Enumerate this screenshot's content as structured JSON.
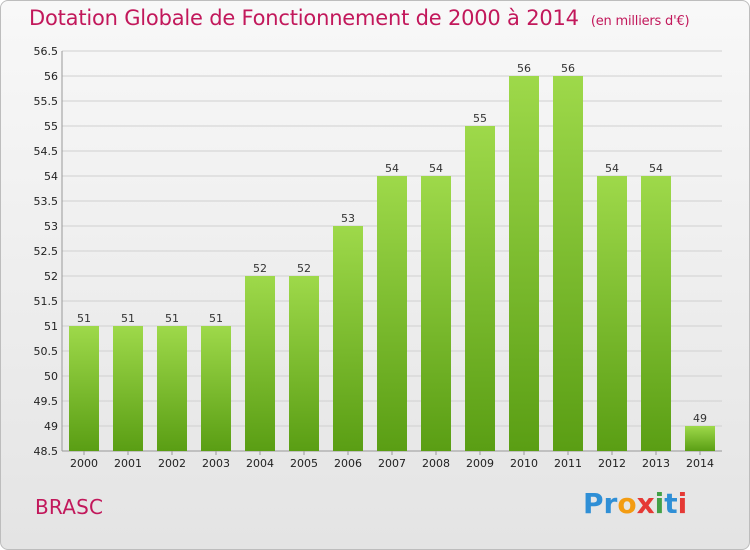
{
  "title": "Dotation Globale de Fonctionnement de 2000 à 2014",
  "subtitle": "(en milliers d'€)",
  "commune": "BRASC",
  "brand": {
    "letters": [
      {
        "ch": "P",
        "color": "#2f8fd6"
      },
      {
        "ch": "r",
        "color": "#2f8fd6"
      },
      {
        "ch": "o",
        "color": "#f39c12"
      },
      {
        "ch": "x",
        "color": "#e53935"
      },
      {
        "ch": "i",
        "color": "#43a047"
      },
      {
        "ch": "t",
        "color": "#2f8fd6"
      },
      {
        "ch": "i",
        "color": "#e53935"
      }
    ]
  },
  "colors": {
    "accent": "#c2185b",
    "bar_top": "#9ed94a",
    "bar_bottom": "#5a9e14",
    "grid": "#d0d0d0"
  },
  "chart_data": {
    "type": "bar",
    "title": "Dotation Globale de Fonctionnement de 2000 à 2014",
    "subtitle": "(en milliers d'€)",
    "categories": [
      "2000",
      "2001",
      "2002",
      "2003",
      "2004",
      "2005",
      "2006",
      "2007",
      "2008",
      "2009",
      "2010",
      "2011",
      "2012",
      "2013",
      "2014"
    ],
    "values": [
      51,
      51,
      51,
      51,
      52,
      52,
      53,
      54,
      54,
      55,
      56,
      56,
      54,
      54,
      49
    ],
    "data_labels": [
      "51",
      "51",
      "51",
      "51",
      "52",
      "52",
      "53",
      "54",
      "54",
      "55",
      "56",
      "56",
      "54",
      "54",
      "49"
    ],
    "yticks": [
      "48.5",
      "49",
      "49.5",
      "50",
      "50.5",
      "51",
      "51.5",
      "52",
      "52.5",
      "53",
      "53.5",
      "54",
      "54.5",
      "55",
      "55.5",
      "56",
      "56.5"
    ],
    "ylim": [
      48.5,
      56.5
    ],
    "grid": true,
    "legend": "none"
  }
}
